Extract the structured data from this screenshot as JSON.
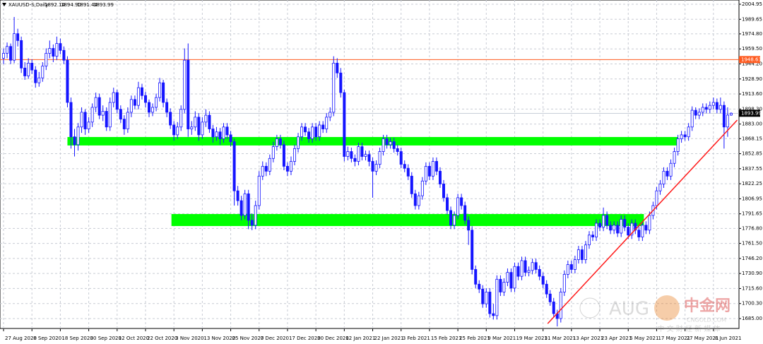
{
  "chart_data": {
    "type": "candlestick",
    "header": {
      "symbol": "XAUUSD-S,Daily",
      "ohlc_labels": [
        "1892.14",
        "1894.90",
        "1891.44",
        "1893.99"
      ]
    },
    "ohlc": [
      [
        1950,
        1960,
        1944,
        1955
      ],
      [
        1955,
        1966,
        1950,
        1962
      ],
      [
        1962,
        1965,
        1944,
        1948
      ],
      [
        1948,
        1992,
        1945,
        1975
      ],
      [
        1975,
        1980,
        1962,
        1968
      ],
      [
        1968,
        1972,
        1935,
        1940
      ],
      [
        1940,
        1946,
        1928,
        1932
      ],
      [
        1932,
        1950,
        1929,
        1945
      ],
      [
        1945,
        1949,
        1934,
        1938
      ],
      [
        1938,
        1942,
        1920,
        1925
      ],
      [
        1925,
        1936,
        1921,
        1930
      ],
      [
        1930,
        1946,
        1926,
        1942
      ],
      [
        1942,
        1960,
        1938,
        1955
      ],
      [
        1955,
        1968,
        1950,
        1960
      ],
      [
        1960,
        1964,
        1946,
        1952
      ],
      [
        1952,
        1972,
        1948,
        1965
      ],
      [
        1965,
        1970,
        1954,
        1958
      ],
      [
        1958,
        1962,
        1944,
        1948
      ],
      [
        1948,
        1952,
        1900,
        1905
      ],
      [
        1905,
        1910,
        1858,
        1870
      ],
      [
        1870,
        1878,
        1850,
        1862
      ],
      [
        1862,
        1884,
        1856,
        1880
      ],
      [
        1880,
        1900,
        1874,
        1895
      ],
      [
        1895,
        1898,
        1872,
        1878
      ],
      [
        1878,
        1890,
        1874,
        1885
      ],
      [
        1885,
        1904,
        1880,
        1900
      ],
      [
        1900,
        1915,
        1895,
        1910
      ],
      [
        1910,
        1914,
        1888,
        1892
      ],
      [
        1892,
        1902,
        1886,
        1896
      ],
      [
        1896,
        1900,
        1876,
        1880
      ],
      [
        1880,
        1910,
        1876,
        1905
      ],
      [
        1905,
        1920,
        1900,
        1915
      ],
      [
        1915,
        1918,
        1894,
        1898
      ],
      [
        1898,
        1902,
        1884,
        1888
      ],
      [
        1888,
        1892,
        1872,
        1878
      ],
      [
        1878,
        1900,
        1874,
        1895
      ],
      [
        1895,
        1912,
        1890,
        1908
      ],
      [
        1908,
        1912,
        1898,
        1902
      ],
      [
        1902,
        1926,
        1898,
        1920
      ],
      [
        1920,
        1924,
        1908,
        1912
      ],
      [
        1912,
        1916,
        1900,
        1905
      ],
      [
        1905,
        1908,
        1890,
        1895
      ],
      [
        1895,
        1904,
        1891,
        1900
      ],
      [
        1900,
        1914,
        1896,
        1910
      ],
      [
        1910,
        1930,
        1906,
        1925
      ],
      [
        1925,
        1928,
        1900,
        1905
      ],
      [
        1905,
        1909,
        1890,
        1895
      ],
      [
        1895,
        1899,
        1878,
        1882
      ],
      [
        1882,
        1886,
        1866,
        1872
      ],
      [
        1872,
        1885,
        1868,
        1880
      ],
      [
        1880,
        1902,
        1876,
        1898
      ],
      [
        1898,
        1960,
        1894,
        1948
      ],
      [
        1948,
        1965,
        1870,
        1878
      ],
      [
        1878,
        1886,
        1872,
        1880
      ],
      [
        1880,
        1896,
        1876,
        1890
      ],
      [
        1890,
        1894,
        1866,
        1872
      ],
      [
        1872,
        1890,
        1868,
        1885
      ],
      [
        1885,
        1898,
        1880,
        1892
      ],
      [
        1892,
        1896,
        1874,
        1878
      ],
      [
        1878,
        1882,
        1864,
        1870
      ],
      [
        1870,
        1880,
        1866,
        1875
      ],
      [
        1875,
        1879,
        1862,
        1868
      ],
      [
        1868,
        1884,
        1864,
        1880
      ],
      [
        1880,
        1884,
        1868,
        1872
      ],
      [
        1872,
        1876,
        1860,
        1865
      ],
      [
        1865,
        1868,
        1800,
        1815
      ],
      [
        1815,
        1820,
        1800,
        1805
      ],
      [
        1805,
        1810,
        1785,
        1790
      ],
      [
        1790,
        1816,
        1786,
        1812
      ],
      [
        1812,
        1816,
        1776,
        1785
      ],
      [
        1785,
        1792,
        1775,
        1780
      ],
      [
        1780,
        1805,
        1776,
        1800
      ],
      [
        1800,
        1835,
        1796,
        1830
      ],
      [
        1830,
        1845,
        1826,
        1840
      ],
      [
        1840,
        1844,
        1830,
        1835
      ],
      [
        1835,
        1852,
        1831,
        1848
      ],
      [
        1848,
        1865,
        1844,
        1860
      ],
      [
        1860,
        1872,
        1856,
        1868
      ],
      [
        1868,
        1872,
        1858,
        1862
      ],
      [
        1862,
        1866,
        1836,
        1840
      ],
      [
        1840,
        1844,
        1830,
        1835
      ],
      [
        1835,
        1850,
        1831,
        1845
      ],
      [
        1845,
        1862,
        1841,
        1858
      ],
      [
        1858,
        1874,
        1854,
        1870
      ],
      [
        1870,
        1884,
        1866,
        1880
      ],
      [
        1880,
        1884,
        1871,
        1875
      ],
      [
        1875,
        1879,
        1864,
        1868
      ],
      [
        1868,
        1884,
        1864,
        1880
      ],
      [
        1880,
        1884,
        1866,
        1870
      ],
      [
        1870,
        1886,
        1866,
        1882
      ],
      [
        1882,
        1886,
        1874,
        1878
      ],
      [
        1878,
        1894,
        1874,
        1890
      ],
      [
        1890,
        1900,
        1886,
        1895
      ],
      [
        1895,
        1952,
        1891,
        1945
      ],
      [
        1945,
        1950,
        1930,
        1935
      ],
      [
        1935,
        1940,
        1910,
        1915
      ],
      [
        1915,
        1918,
        1845,
        1850
      ],
      [
        1850,
        1860,
        1846,
        1855
      ],
      [
        1855,
        1859,
        1844,
        1848
      ],
      [
        1848,
        1852,
        1840,
        1845
      ],
      [
        1845,
        1864,
        1841,
        1860
      ],
      [
        1860,
        1864,
        1846,
        1850
      ],
      [
        1850,
        1856,
        1846,
        1852
      ],
      [
        1852,
        1856,
        1840,
        1845
      ],
      [
        1845,
        1849,
        1808,
        1835
      ],
      [
        1835,
        1846,
        1831,
        1842
      ],
      [
        1842,
        1859,
        1838,
        1855
      ],
      [
        1855,
        1872,
        1851,
        1868
      ],
      [
        1868,
        1872,
        1858,
        1862
      ],
      [
        1862,
        1869,
        1858,
        1865
      ],
      [
        1865,
        1869,
        1854,
        1858
      ],
      [
        1858,
        1862,
        1851,
        1855
      ],
      [
        1855,
        1859,
        1838,
        1842
      ],
      [
        1842,
        1846,
        1834,
        1838
      ],
      [
        1838,
        1842,
        1826,
        1830
      ],
      [
        1830,
        1834,
        1808,
        1812
      ],
      [
        1812,
        1816,
        1796,
        1800
      ],
      [
        1800,
        1814,
        1796,
        1810
      ],
      [
        1810,
        1829,
        1806,
        1825
      ],
      [
        1825,
        1844,
        1821,
        1840
      ],
      [
        1840,
        1844,
        1826,
        1830
      ],
      [
        1830,
        1849,
        1826,
        1845
      ],
      [
        1845,
        1849,
        1831,
        1835
      ],
      [
        1835,
        1839,
        1818,
        1822
      ],
      [
        1822,
        1826,
        1804,
        1808
      ],
      [
        1808,
        1812,
        1791,
        1795
      ],
      [
        1795,
        1799,
        1776,
        1780
      ],
      [
        1780,
        1794,
        1776,
        1790
      ],
      [
        1790,
        1812,
        1786,
        1808
      ],
      [
        1808,
        1812,
        1796,
        1800
      ],
      [
        1800,
        1804,
        1781,
        1785
      ],
      [
        1785,
        1789,
        1760,
        1775
      ],
      [
        1775,
        1779,
        1730,
        1735
      ],
      [
        1735,
        1739,
        1716,
        1720
      ],
      [
        1720,
        1724,
        1711,
        1715
      ],
      [
        1715,
        1719,
        1696,
        1700
      ],
      [
        1700,
        1716,
        1696,
        1712
      ],
      [
        1712,
        1716,
        1686,
        1690
      ],
      [
        1690,
        1700,
        1684,
        1688
      ],
      [
        1688,
        1729,
        1684,
        1725
      ],
      [
        1725,
        1729,
        1708,
        1712
      ],
      [
        1712,
        1726,
        1708,
        1722
      ],
      [
        1722,
        1736,
        1718,
        1732
      ],
      [
        1732,
        1736,
        1712,
        1716
      ],
      [
        1716,
        1742,
        1712,
        1738
      ],
      [
        1738,
        1742,
        1724,
        1728
      ],
      [
        1728,
        1748,
        1724,
        1744
      ],
      [
        1744,
        1748,
        1728,
        1732
      ],
      [
        1732,
        1738,
        1728,
        1734
      ],
      [
        1734,
        1746,
        1730,
        1742
      ],
      [
        1742,
        1746,
        1731,
        1735
      ],
      [
        1735,
        1739,
        1724,
        1728
      ],
      [
        1728,
        1732,
        1716,
        1720
      ],
      [
        1720,
        1724,
        1706,
        1710
      ],
      [
        1710,
        1714,
        1698,
        1702
      ],
      [
        1702,
        1706,
        1686,
        1690
      ],
      [
        1690,
        1694,
        1677,
        1685
      ],
      [
        1685,
        1716,
        1681,
        1712
      ],
      [
        1712,
        1734,
        1708,
        1730
      ],
      [
        1730,
        1744,
        1726,
        1740
      ],
      [
        1740,
        1744,
        1731,
        1735
      ],
      [
        1735,
        1749,
        1731,
        1745
      ],
      [
        1745,
        1759,
        1741,
        1755
      ],
      [
        1755,
        1759,
        1741,
        1745
      ],
      [
        1745,
        1764,
        1741,
        1760
      ],
      [
        1760,
        1774,
        1756,
        1770
      ],
      [
        1770,
        1774,
        1764,
        1768
      ],
      [
        1768,
        1786,
        1764,
        1782
      ],
      [
        1782,
        1786,
        1774,
        1778
      ],
      [
        1778,
        1798,
        1774,
        1790
      ],
      [
        1790,
        1794,
        1776,
        1780
      ],
      [
        1780,
        1784,
        1771,
        1775
      ],
      [
        1775,
        1784,
        1771,
        1780
      ],
      [
        1780,
        1784,
        1768,
        1772
      ],
      [
        1772,
        1790,
        1768,
        1786
      ],
      [
        1786,
        1790,
        1774,
        1778
      ],
      [
        1778,
        1782,
        1766,
        1770
      ],
      [
        1770,
        1786,
        1766,
        1782
      ],
      [
        1782,
        1786,
        1771,
        1775
      ],
      [
        1775,
        1779,
        1764,
        1768
      ],
      [
        1768,
        1784,
        1764,
        1780
      ],
      [
        1780,
        1784,
        1771,
        1775
      ],
      [
        1775,
        1794,
        1771,
        1790
      ],
      [
        1790,
        1804,
        1786,
        1800
      ],
      [
        1800,
        1819,
        1796,
        1815
      ],
      [
        1815,
        1826,
        1811,
        1822
      ],
      [
        1822,
        1839,
        1818,
        1835
      ],
      [
        1835,
        1839,
        1826,
        1830
      ],
      [
        1830,
        1847,
        1826,
        1843
      ],
      [
        1843,
        1859,
        1839,
        1855
      ],
      [
        1855,
        1872,
        1851,
        1868
      ],
      [
        1868,
        1876,
        1864,
        1872
      ],
      [
        1872,
        1876,
        1866,
        1870
      ],
      [
        1870,
        1884,
        1866,
        1880
      ],
      [
        1880,
        1901,
        1876,
        1897
      ],
      [
        1897,
        1900,
        1888,
        1892
      ],
      [
        1892,
        1899,
        1888,
        1895
      ],
      [
        1895,
        1904,
        1891,
        1900
      ],
      [
        1900,
        1904,
        1894,
        1898
      ],
      [
        1898,
        1906,
        1894,
        1902
      ],
      [
        1902,
        1910,
        1898,
        1905
      ],
      [
        1905,
        1909,
        1894,
        1898
      ],
      [
        1898,
        1910,
        1894,
        1902
      ],
      [
        1902,
        1906,
        1858,
        1880
      ],
      [
        1880,
        1900,
        1870,
        1892.14
      ],
      [
        1892.14,
        1894.9,
        1891.44,
        1893.99
      ]
    ],
    "xticks": [
      {
        "value": 0,
        "label": "27 Aug 2020"
      },
      {
        "value": 8,
        "label": "8 Sep 2020"
      },
      {
        "value": 16,
        "label": "18 Sep 2020"
      },
      {
        "value": 24,
        "label": "30 Sep 2020"
      },
      {
        "value": 32,
        "label": "12 Oct 2020"
      },
      {
        "value": 40,
        "label": "22 Oct 2020"
      },
      {
        "value": 48,
        "label": "3 Nov 2020"
      },
      {
        "value": 56,
        "label": "13 Nov 2020"
      },
      {
        "value": 64,
        "label": "25 Nov 2020"
      },
      {
        "value": 72,
        "label": "7 Dec 2020"
      },
      {
        "value": 80,
        "label": "17 Dec 2020"
      },
      {
        "value": 88,
        "label": "30 Dec 2020"
      },
      {
        "value": 96,
        "label": "12 Jan 2021"
      },
      {
        "value": 104,
        "label": "22 Jan 2021"
      },
      {
        "value": 112,
        "label": "3 Feb 2021"
      },
      {
        "value": 120,
        "label": "15 Feb 2021"
      },
      {
        "value": 128,
        "label": "25 Feb 2021"
      },
      {
        "value": 136,
        "label": "9 Mar 2021"
      },
      {
        "value": 144,
        "label": "19 Mar 2021"
      },
      {
        "value": 152,
        "label": "31 Mar 2021"
      },
      {
        "value": 160,
        "label": "13 Apr 2021"
      },
      {
        "value": 168,
        "label": "23 Apr 2021"
      },
      {
        "value": 176,
        "label": "5 May 2021"
      },
      {
        "value": 184,
        "label": "17 May 2021"
      },
      {
        "value": 192,
        "label": "27 May 2021"
      },
      {
        "value": 200,
        "label": "8 Jun 2021"
      }
    ],
    "xlim": [
      -1,
      207.2
    ],
    "ylim": [
      1674.93,
      2009.26
    ],
    "yticks": [
      2004.95,
      1989.65,
      {
        "value": 1974.8,
        "label": "1974.80"
      },
      {
        "value": 1959.5,
        "label": "1959.50"
      },
      {
        "value": 1944.2,
        "label": "1944.20"
      },
      {
        "value": 1928.9,
        "label": "1928.90"
      },
      {
        "value": 1913.6,
        "label": "1913.60"
      },
      {
        "value": 1898.3,
        "label": "1898.30"
      },
      {
        "value": 1883,
        "label": "1883.00"
      },
      1868.15,
      1852.85,
      1837.55,
      1822.25,
      1806.95,
      1791.65,
      {
        "value": 1776.8,
        "label": "1776.80"
      },
      {
        "value": 1761.5,
        "label": "1761.50"
      },
      {
        "value": 1746.2,
        "label": "1746.20"
      },
      {
        "value": 1730.9,
        "label": "1730.90"
      },
      {
        "value": 1715.6,
        "label": "1715.60"
      },
      {
        "value": 1700.3,
        "label": "1700.30"
      },
      {
        "value": 1685,
        "label": "1685.00"
      }
    ],
    "grid": true,
    "up_color": "#ffffff",
    "down_color": "#1515ff",
    "wick_color": "#1515ff",
    "level": {
      "value": 1948.63,
      "color": "#ff5a1f"
    },
    "zones": [
      {
        "from": 18,
        "to": 190,
        "low": 1861.2,
        "high": 1869.8,
        "color": "#00ff00"
      },
      {
        "from": 47.3,
        "to": 180.4,
        "low": 1779.2,
        "high": 1791.4,
        "color": "#00ff00"
      }
    ],
    "trendline": {
      "x": [
        153.3,
        206.7
      ],
      "y": [
        1679.9,
        1887
      ],
      "color": "#ff1a1a"
    },
    "watermark": {
      "brand": "AUG",
      "name": "中金网",
      "site": "CNGOLD.COM",
      "slogan": "中 文 财 经 新 媒 体"
    }
  }
}
